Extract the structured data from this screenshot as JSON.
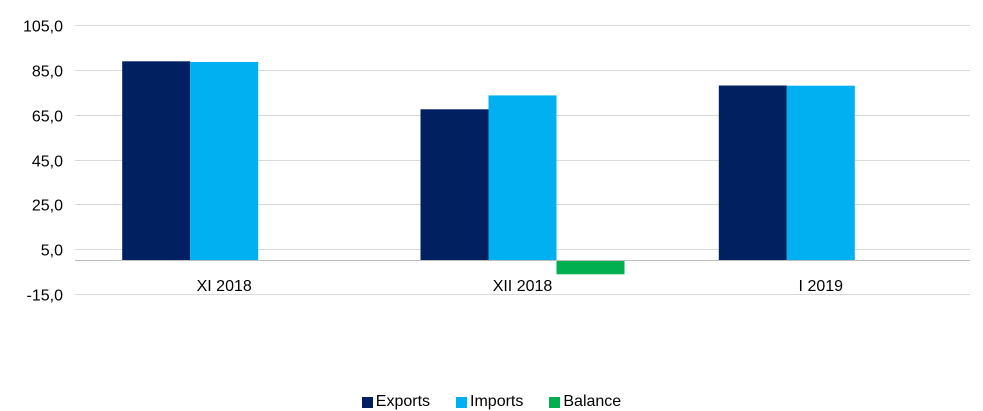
{
  "chart_data": {
    "type": "bar",
    "categories": [
      "XI 2018",
      "XII 2018",
      "I 2019"
    ],
    "series": [
      {
        "name": "Exports",
        "values": [
          88.8,
          67.4,
          78.0
        ],
        "color": "#002060"
      },
      {
        "name": "Imports",
        "values": [
          88.5,
          73.6,
          77.9
        ],
        "color": "#00B0F0"
      },
      {
        "name": "Balance",
        "values": [
          null,
          -6.2,
          null
        ],
        "color": "#00B050"
      }
    ],
    "ylim": [
      -15,
      105
    ],
    "yticks": [
      "105,0",
      "85,0",
      "65,0",
      "45,0",
      "25,0",
      "5,0",
      "-15,0"
    ],
    "ytick_values": [
      105,
      85,
      65,
      45,
      25,
      5,
      -15
    ],
    "grid": true,
    "legend_position": "bottom"
  }
}
